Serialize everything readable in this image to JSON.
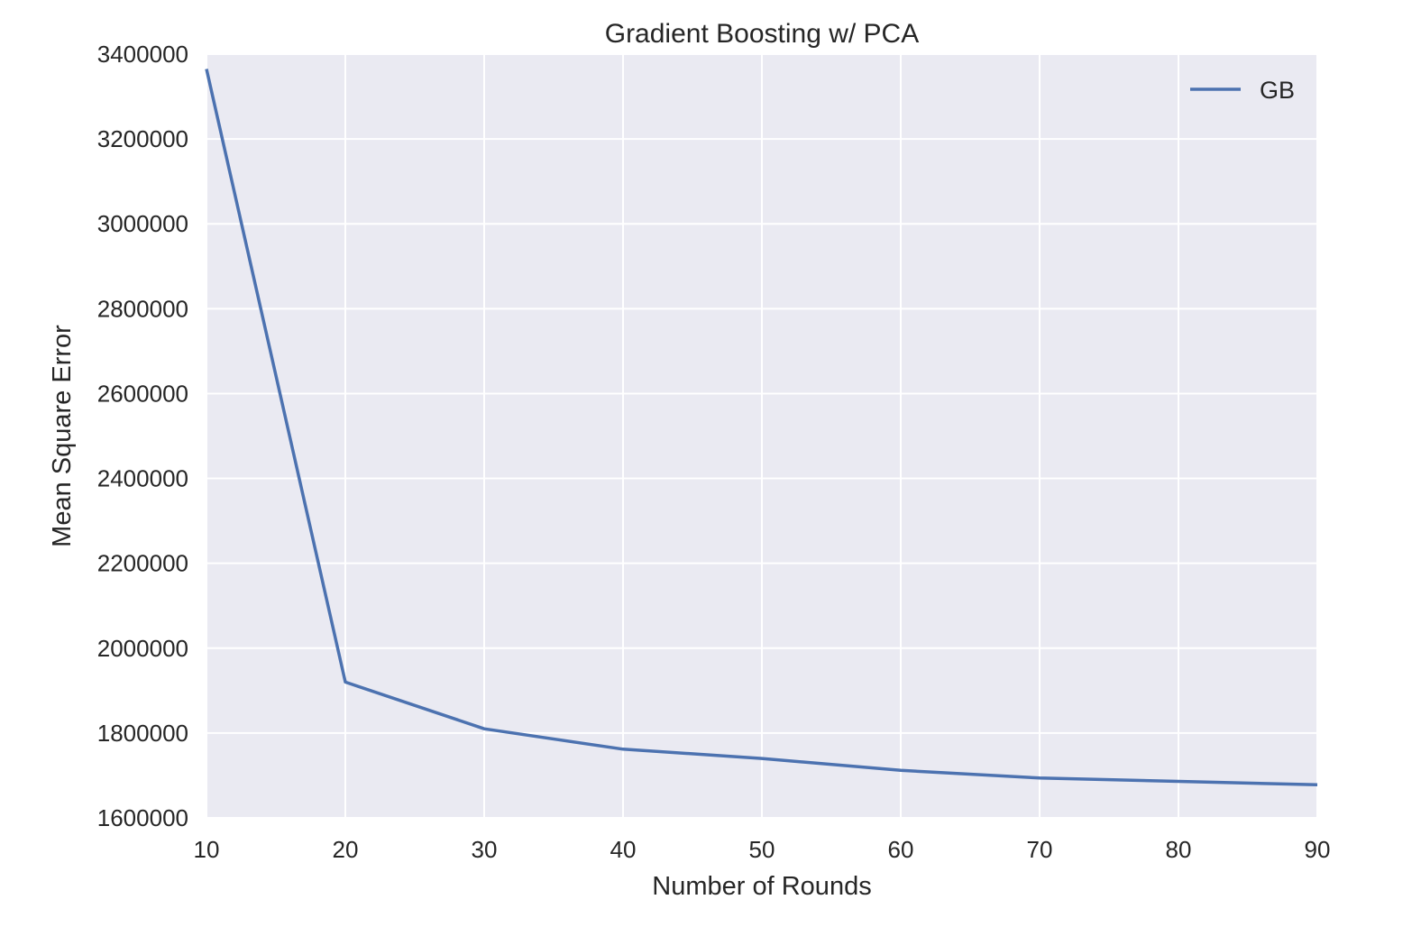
{
  "chart_data": {
    "type": "line",
    "title": "Gradient Boosting w/ PCA",
    "xlabel": "Number of Rounds",
    "ylabel": "Mean Square Error",
    "xlim": [
      10,
      90
    ],
    "ylim": [
      1600000,
      3400000
    ],
    "x_ticks": [
      10,
      20,
      30,
      40,
      50,
      60,
      70,
      80,
      90
    ],
    "y_ticks": [
      1600000,
      1800000,
      2000000,
      2200000,
      2400000,
      2600000,
      2800000,
      3000000,
      3200000,
      3400000
    ],
    "x_tick_labels": [
      "10",
      "20",
      "30",
      "40",
      "50",
      "60",
      "70",
      "80",
      "90"
    ],
    "y_tick_labels": [
      "1600000",
      "1800000",
      "2000000",
      "2200000",
      "2400000",
      "2600000",
      "2800000",
      "3000000",
      "3200000",
      "3400000"
    ],
    "grid": true,
    "legend_position": "top-right",
    "series": [
      {
        "name": "GB",
        "color": "#4c72b0",
        "x": [
          10,
          20,
          30,
          40,
          50,
          60,
          70,
          80,
          90
        ],
        "y": [
          3365000,
          1920000,
          1810000,
          1762000,
          1740000,
          1712000,
          1694000,
          1686000,
          1678000
        ]
      }
    ]
  },
  "colors": {
    "plot_background": "#eaeaf2",
    "grid": "#ffffff",
    "text": "#262626"
  }
}
